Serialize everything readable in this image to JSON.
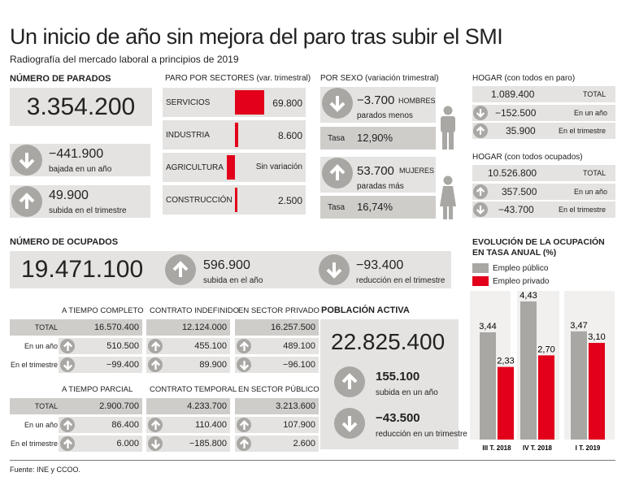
{
  "title": "Un inicio de año sin mejora del paro tras subir el SMI",
  "subtitle": "Radiografía del mercado laboral a principios de 2019",
  "source": "Fuente: INE y CCOO.",
  "parados": {
    "heading": "NÚMERO DE PARADOS",
    "total": "3.354.200",
    "year_change": "−441.900",
    "year_label": "bajada en un año",
    "quarter_change": "49.900",
    "quarter_label": "subida en el trimestre"
  },
  "sectores": {
    "heading": "PARO POR SECTORES",
    "heading_note": "(var. trimestral)",
    "items": [
      {
        "name": "SERVICIOS",
        "value": "69.800",
        "num": 69800
      },
      {
        "name": "INDUSTRIA",
        "value": "8.600",
        "num": 8600
      },
      {
        "name": "AGRICULTURA",
        "value": "Sin variación",
        "num": 0
      },
      {
        "name": "CONSTRUCCIÓN",
        "value": "2.500",
        "num": 2500
      }
    ]
  },
  "sexo": {
    "heading": "POR SEXO",
    "heading_note": "(variación trimestral)",
    "hombres": {
      "label": "HOMBRES",
      "value": "−3.700",
      "desc": "parados menos",
      "tasa_label": "Tasa",
      "tasa": "12,90%"
    },
    "mujeres": {
      "label": "MUJERES",
      "value": "53.700",
      "desc": "paradas más",
      "tasa_label": "Tasa",
      "tasa": "16,74%"
    }
  },
  "hogar_paro": {
    "heading": "HOGAR (con todos en paro)",
    "total": "1.089.400",
    "total_label": "TOTAL",
    "year": "−152.500",
    "year_label": "En un año",
    "quarter": "35.900",
    "quarter_label": "En el trimestre"
  },
  "hogar_ocupados": {
    "heading": "HOGAR (con todos ocupados)",
    "total": "10.526.800",
    "total_label": "TOTAL",
    "year": "357.500",
    "year_label": "En un año",
    "quarter": "−43.700",
    "quarter_label": "En el trimestre"
  },
  "ocupados": {
    "heading": "NÚMERO DE OCUPADOS",
    "total": "19.471.100",
    "year_change": "596.900",
    "year_label": "subida en el año",
    "quarter_change": "−93.400",
    "quarter_label": "reducción en el trimestre"
  },
  "tabla": {
    "row_labels": [
      "TOTAL",
      "En un año",
      "En el trimestre"
    ],
    "top_headers": [
      "A TIEMPO COMPLETO",
      "CONTRATO INDEFINIDO",
      "EN SECTOR PRIVADO"
    ],
    "top_cols": [
      [
        "16.570.400",
        "510.500",
        "−99.400"
      ],
      [
        "12.124.000",
        "455.100",
        "89.900"
      ],
      [
        "16.257.500",
        "489.100",
        "−96.100"
      ]
    ],
    "bottom_headers": [
      "A TIEMPO PARCIAL",
      "CONTRATO TEMPORAL",
      "EN SECTOR PÚBLICO"
    ],
    "bottom_cols": [
      [
        "2.900.700",
        "86.400",
        "6.000"
      ],
      [
        "4.233.700",
        "110.400",
        "−185.800"
      ],
      [
        "3.213.600",
        "107.900",
        "2.600"
      ]
    ]
  },
  "activa": {
    "heading": "POBLACIÓN ACTIVA",
    "total": "22.825.400",
    "year_change": "155.100",
    "year_label": "subida en un año",
    "quarter_change": "−43.500",
    "quarter_label": "reducción en un trimestre"
  },
  "chart_data": {
    "type": "bar",
    "title": "EVOLUCIÓN DE LA OCUPACIÓN EN TASA ANUAL (%)",
    "categories": [
      "III T. 2018",
      "IV T. 2018",
      "I T. 2019"
    ],
    "series": [
      {
        "name": "Empleo público",
        "values": [
          3.44,
          4.43,
          3.47
        ],
        "labels": [
          "3,44",
          "4,43",
          "3,47"
        ],
        "color": "#a9a7a4"
      },
      {
        "name": "Empleo privado",
        "values": [
          2.33,
          2.7,
          3.1
        ],
        "labels": [
          "2,33",
          "2,70",
          "3,10"
        ],
        "color": "#e2001a"
      }
    ],
    "ylim": [
      0,
      4.43
    ],
    "legend": "top-left",
    "grid": false
  },
  "colors": {
    "accent": "#e2001a",
    "grey": "#a9a7a4",
    "panel": "#e4e3e1"
  }
}
